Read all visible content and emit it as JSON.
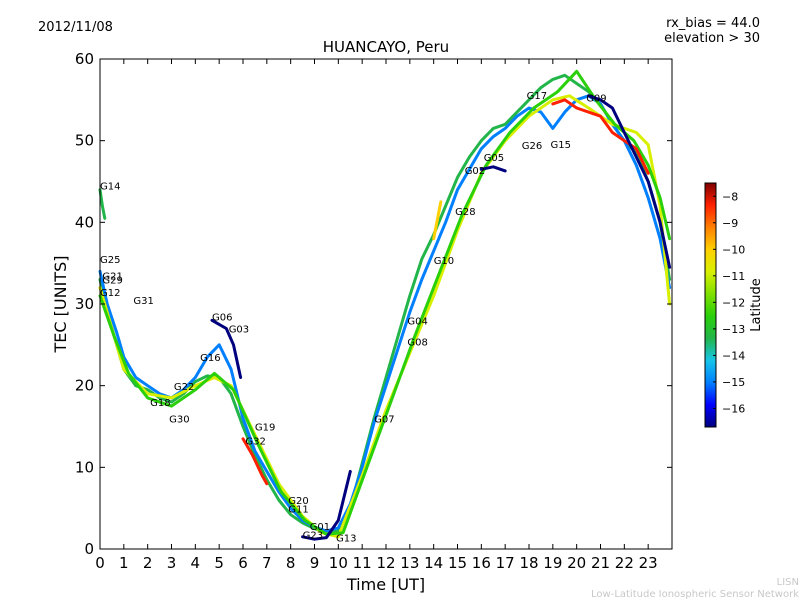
{
  "chart_data": {
    "type": "line",
    "title": "HUANCAYO, Peru",
    "date": "2012/11/08",
    "rx_bias": "rx_bias = 44.0",
    "elevation": "elevation > 30",
    "xlabel": "Time [UT]",
    "ylabel": "TEC [UNITS]",
    "xlim": [
      0,
      24
    ],
    "ylim": [
      0,
      60
    ],
    "xticks": [
      0,
      1,
      2,
      3,
      4,
      5,
      6,
      7,
      8,
      9,
      10,
      11,
      12,
      13,
      14,
      15,
      16,
      17,
      18,
      19,
      20,
      21,
      22,
      23
    ],
    "yticks": [
      0,
      10,
      20,
      30,
      40,
      50,
      60
    ],
    "colorbar": {
      "label": "Latitude",
      "range": [
        -16.7,
        -7.5
      ],
      "ticks": [
        -8,
        -9,
        -10,
        -11,
        -12,
        -13,
        -14,
        -15,
        -16
      ],
      "colors": [
        "#00007f",
        "#0000ff",
        "#007fff",
        "#17c5e8",
        "#22b54a",
        "#2ad00a",
        "#7fe000",
        "#d8f000",
        "#ffd000",
        "#ff8000",
        "#ff2000",
        "#7f0000"
      ]
    },
    "satellites": [
      {
        "name": "G14",
        "x": 0.0,
        "y": 44.0
      },
      {
        "name": "G25",
        "x": 0.0,
        "y": 35.0
      },
      {
        "name": "G21",
        "x": 0.1,
        "y": 33.0
      },
      {
        "name": "G29",
        "x": 0.1,
        "y": 32.5
      },
      {
        "name": "G12",
        "x": 0.0,
        "y": 31.0
      },
      {
        "name": "G31",
        "x": 1.4,
        "y": 30.0
      },
      {
        "name": "G06",
        "x": 4.7,
        "y": 28.0
      },
      {
        "name": "G03",
        "x": 5.4,
        "y": 26.5
      },
      {
        "name": "G16",
        "x": 4.2,
        "y": 23.0
      },
      {
        "name": "G22",
        "x": 3.1,
        "y": 19.5
      },
      {
        "name": "G18",
        "x": 2.1,
        "y": 17.5
      },
      {
        "name": "G30",
        "x": 2.9,
        "y": 15.5
      },
      {
        "name": "G19",
        "x": 6.5,
        "y": 14.5
      },
      {
        "name": "G32",
        "x": 6.1,
        "y": 12.8
      },
      {
        "name": "G20",
        "x": 7.9,
        "y": 5.5
      },
      {
        "name": "G11",
        "x": 7.9,
        "y": 4.5
      },
      {
        "name": "G01",
        "x": 8.8,
        "y": 2.3
      },
      {
        "name": "G23",
        "x": 8.5,
        "y": 1.3
      },
      {
        "name": "G13",
        "x": 9.9,
        "y": 0.9
      },
      {
        "name": "G07",
        "x": 11.5,
        "y": 15.5
      },
      {
        "name": "G04",
        "x": 12.9,
        "y": 27.5
      },
      {
        "name": "G08",
        "x": 12.9,
        "y": 24.9
      },
      {
        "name": "G10",
        "x": 14.0,
        "y": 34.9
      },
      {
        "name": "G28",
        "x": 14.9,
        "y": 40.9
      },
      {
        "name": "G02",
        "x": 15.3,
        "y": 45.9
      },
      {
        "name": "G05",
        "x": 16.1,
        "y": 47.5
      },
      {
        "name": "G26",
        "x": 17.7,
        "y": 49.0
      },
      {
        "name": "G15",
        "x": 18.9,
        "y": 49.1
      },
      {
        "name": "G17",
        "x": 17.9,
        "y": 55.1
      },
      {
        "name": "G09",
        "x": 20.4,
        "y": 54.8
      }
    ],
    "series": [
      {
        "name": "A",
        "lat": -13.5,
        "t": [
          0,
          0.3,
          0.7,
          1.0,
          1.5,
          2.0,
          2.5,
          3.0,
          3.5,
          4.0,
          4.5,
          5.0,
          5.5,
          6.0,
          6.5,
          7.0,
          7.5,
          8.0,
          8.5,
          9.0,
          9.5,
          10.0,
          10.5,
          11.0,
          11.5,
          12.0,
          12.5,
          13.0,
          13.5,
          14.0,
          14.5,
          15.0,
          15.5,
          16.0,
          16.5,
          17.0,
          17.5,
          18.0,
          18.5,
          19.0,
          19.5,
          20.0,
          20.5,
          21.0,
          21.5,
          22.0,
          22.5,
          23.0,
          23.5,
          23.9
        ],
        "v": [
          33,
          29,
          25,
          22,
          20,
          19.5,
          18.5,
          18.0,
          19.0,
          20.5,
          21.2,
          21.0,
          19.0,
          15.0,
          11.5,
          8.5,
          6.0,
          4.2,
          3.2,
          2.5,
          2.0,
          2.2,
          5.0,
          10.5,
          16.0,
          21.0,
          26.0,
          31.0,
          35.5,
          38.5,
          42.0,
          45.5,
          48.0,
          50.0,
          51.5,
          52.0,
          53.5,
          55.0,
          56.5,
          57.5,
          58.0,
          57.0,
          56.0,
          54.5,
          52.0,
          50.0,
          48.5,
          45.0,
          40.0,
          33.0
        ]
      },
      {
        "name": "B",
        "lat": -15.0,
        "t": [
          0,
          0.3,
          0.7,
          1.0,
          1.5,
          2.0,
          2.5,
          3.0,
          3.5,
          4.0,
          4.5,
          5.0,
          5.5,
          6.0,
          6.5,
          7.0,
          7.5,
          8.0,
          8.5,
          9.0,
          9.5,
          10.0,
          10.5,
          11.0,
          11.5,
          12.0,
          12.5,
          13.0,
          13.5,
          14.0,
          14.5,
          15.0,
          15.5,
          16.0,
          16.5,
          17.0,
          17.5,
          18.0,
          18.5,
          19.0,
          19.5,
          20.0,
          20.5,
          21.0,
          21.5,
          22.0,
          22.5,
          23.0,
          23.5,
          23.9
        ],
        "v": [
          34,
          30,
          26.5,
          23.5,
          21,
          20,
          19,
          18.5,
          19.5,
          21.0,
          23.5,
          25.0,
          22.0,
          16.0,
          12.0,
          9.5,
          7.0,
          5.0,
          3.5,
          2.7,
          2.2,
          2.6,
          5.5,
          10.0,
          15.5,
          20.0,
          24.5,
          29.0,
          33.0,
          36.5,
          40.0,
          44.0,
          46.5,
          49.0,
          50.5,
          51.5,
          53.0,
          54.0,
          53.5,
          51.5,
          53.5,
          55.0,
          55.5,
          54.5,
          52.0,
          50.0,
          47.0,
          43.0,
          38.0,
          32.0
        ]
      },
      {
        "name": "C",
        "lat": -10.5,
        "t": [
          0,
          0.5,
          1.0,
          2.0,
          3.0,
          4.0,
          4.8,
          5.5,
          6.5,
          7.5,
          8.5,
          9.3,
          10.0,
          11.0,
          12.0,
          13.0,
          14.0,
          15.0,
          16.0,
          17.0,
          18.0,
          19.0,
          19.7,
          20.5,
          21.5,
          22.5,
          23.0,
          23.5,
          23.9
        ],
        "v": [
          32,
          27,
          22,
          19,
          18.5,
          20,
          21,
          20,
          14,
          8,
          4,
          2,
          1.5,
          9,
          17,
          24,
          31,
          39,
          46,
          50,
          53,
          55,
          55.5,
          54,
          52,
          51,
          49.5,
          42,
          30
        ]
      },
      {
        "name": "D",
        "lat": -12.5,
        "t": [
          0,
          0.6,
          1.2,
          2.0,
          3.0,
          4.0,
          4.8,
          5.6,
          6.6,
          7.6,
          8.6,
          9.5,
          10.2,
          11.2,
          12.2,
          13.2,
          14.2,
          15.2,
          16.2,
          17.2,
          18.2,
          19.2,
          20.0,
          20.8,
          21.6,
          22.4,
          23.0,
          23.5,
          23.9
        ],
        "v": [
          31,
          26,
          21.5,
          18.5,
          17.5,
          19.5,
          21.5,
          19.5,
          13,
          7,
          3.5,
          1.8,
          2.0,
          10,
          18,
          26,
          33.5,
          41,
          47,
          51,
          54,
          56,
          58.5,
          55,
          52,
          50,
          47,
          43,
          38
        ]
      },
      {
        "name": "E",
        "lat": -8.7,
        "t": [
          19.0,
          19.5,
          20.0,
          21.0,
          21.5,
          22.0,
          22.5,
          23.0
        ],
        "v": [
          54.5,
          55.0,
          54.0,
          53.0,
          51.0,
          50.0,
          49.0,
          46.0
        ]
      },
      {
        "name": "F",
        "lat": -16.3,
        "t": [
          20.5,
          21.0,
          21.5,
          22.0,
          22.5,
          23.0,
          23.5,
          23.9
        ],
        "v": [
          55.5,
          55.0,
          54.0,
          51.0,
          48.0,
          45.0,
          40.0,
          34.5
        ]
      },
      {
        "name": "G",
        "lat": -16.3,
        "t": [
          4.7,
          5.0,
          5.3,
          5.6,
          5.9
        ],
        "v": [
          28,
          27.5,
          27.0,
          25.0,
          21.0
        ]
      },
      {
        "name": "H",
        "lat": -16.3,
        "t": [
          16.0,
          16.5,
          17.0
        ],
        "v": [
          46.5,
          46.8,
          46.3
        ]
      },
      {
        "name": "I",
        "lat": -8.2,
        "t": [
          6.0,
          6.4,
          6.8,
          7.0
        ],
        "v": [
          13.5,
          11.5,
          9.0,
          8.0
        ]
      },
      {
        "name": "J",
        "lat": -13.0,
        "t": [
          0.0,
          0.1,
          0.2
        ],
        "v": [
          44.0,
          42.0,
          40.5
        ]
      },
      {
        "name": "K",
        "lat": -16.3,
        "t": [
          8.5,
          9.0,
          9.5,
          10.0,
          10.5
        ],
        "v": [
          1.5,
          1.2,
          1.4,
          3.5,
          9.5
        ]
      },
      {
        "name": "L",
        "lat": -10.0,
        "t": [
          14.0,
          14.3
        ],
        "v": [
          38,
          42.5
        ]
      }
    ]
  },
  "footer": {
    "line1": "LISN",
    "line2": "Low-Latitude Ionospheric Sensor Network"
  }
}
